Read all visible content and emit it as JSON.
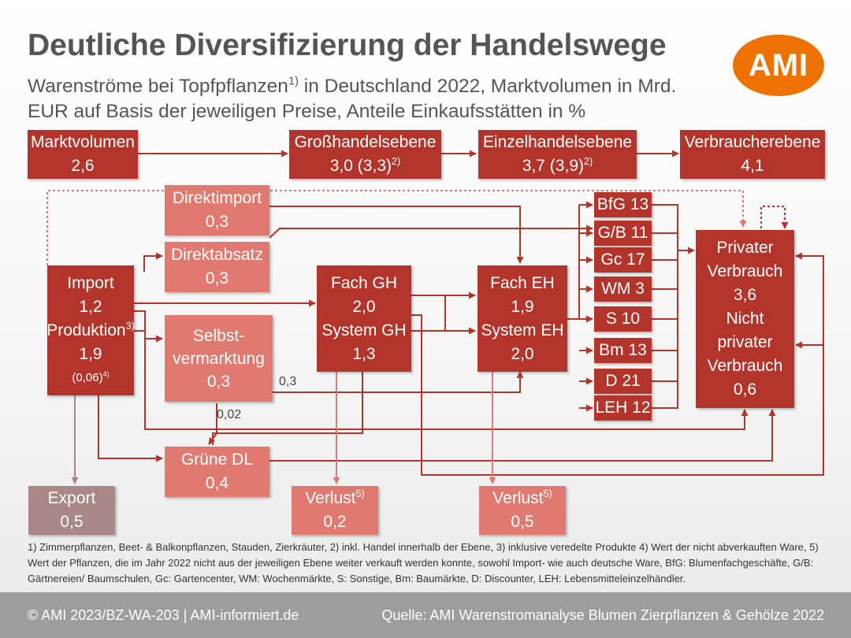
{
  "title": "Deutliche Diversifizierung der Handelswege",
  "subtitle": {
    "part1": "Warenströme bei Topfpflanzen",
    "sup": "1)",
    "part2": " in Deutschland 2022, Marktvolumen in Mrd. EUR auf Basis der jeweiligen Preise, Anteile Einkaufsstätten in %"
  },
  "logo": "AMI",
  "colors": {
    "dark": "#b3342b",
    "light": "#e07a70",
    "grey": "#a88886",
    "logo": "#ee7203",
    "footer": "#9d9d9d"
  },
  "levels": {
    "markt": {
      "label": "Marktvolumen",
      "value": "2,6"
    },
    "gross": {
      "label": "Großhandelsebene",
      "value": "3,0 (3,3)",
      "sup": "2)"
    },
    "einzel": {
      "label": "Einzelhandelsebene",
      "value": "3,7 (3,9)",
      "sup": "2)"
    },
    "verbraucher": {
      "label": "Verbraucherebene",
      "value": "4,1"
    }
  },
  "boxes": {
    "direktimport": {
      "label": "Direktimport",
      "value": "0,3"
    },
    "direktabsatz": {
      "label": "Direktabsatz",
      "value": "0,3"
    },
    "selbst": {
      "line1": "Selbst-",
      "line2": "vermarktung",
      "value": "0,3"
    },
    "import": {
      "l1": "Import",
      "v1": "1,2",
      "l2": "Produktion",
      "sup": "3)",
      "v2": "1,9",
      "v3": "(0,06)",
      "sup2": "4)"
    },
    "fachgh": {
      "l1": "Fach GH",
      "v1": "2,0",
      "l2": "System GH",
      "v2": "1,3"
    },
    "facheh": {
      "l1": "Fach EH",
      "v1": "1,9",
      "l2": "System EH",
      "v2": "2,0"
    },
    "gruene": {
      "label": "Grüne DL",
      "value": "0,4"
    },
    "export": {
      "label": "Export",
      "value": "0,5"
    },
    "verlust1": {
      "label": "Verlust",
      "sup": "5)",
      "value": "0,2"
    },
    "verlust2": {
      "label": "Verlust",
      "sup": "5)",
      "value": "0,5"
    },
    "privat": {
      "l1": "Privater",
      "l2": "Verbrauch",
      "v1": "3,6",
      "l3": "Nicht",
      "l4": "privater",
      "l5": "Verbrauch",
      "v2": "0,6"
    }
  },
  "shops": [
    "BfG 13",
    "G/B 11",
    "Gc 17",
    "WM 3",
    "S 10",
    "Bm 13",
    "D 21",
    "LEH 12"
  ],
  "flow_labels": {
    "a": "0,3",
    "b": "0,02"
  },
  "footnote": "1) Zimmerpflanzen, Beet- & Balkonpflanzen, Stauden, Zierkräuter, 2) inkl. Handel innerhalb der Ebene, 3) inklusive veredelte Produkte 4) Wert der nicht abverkauften Ware, 5) Wert der Pflanzen, die im Jahr 2022 nicht aus der jeweiligen Ebene weiter verkauft werden konnte, sowohl Import- wie auch deutsche Ware, BfG: Blumenfachgeschäfte, G/B: Gärtnereien/ Baumschulen, Gc: Gartencenter, WM: Wochenmärkte, S: Sonstige, Bm: Baumärkte, D: Discounter, LEH: Lebensmitteleinzelhändler.",
  "footer": {
    "left": "© AMI 2023/BZ-WA-203 | AMI-informiert.de",
    "right": "Quelle: AMI Warenstromanalyse Blumen Zierpflanzen & Gehölze 2022"
  }
}
